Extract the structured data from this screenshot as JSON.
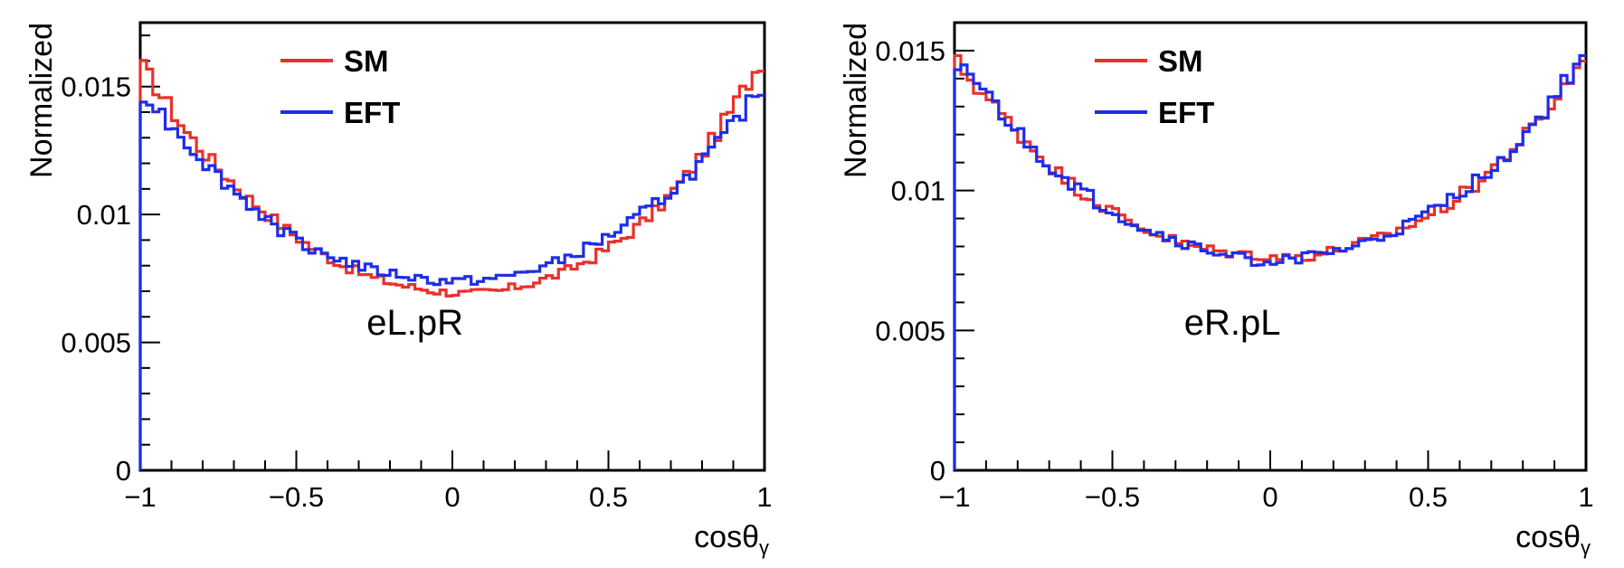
{
  "chart_data": [
    {
      "type": "line",
      "style": "step-histogram",
      "annotation": "eL.pR",
      "xlabel": "cosθγ",
      "xlabel_main": "cosθ",
      "xlabel_sub": "γ",
      "ylabel": "Normalized",
      "xlim": [
        -1,
        1
      ],
      "ylim": [
        0,
        0.0175
      ],
      "xticks": [
        -1,
        -0.5,
        0,
        0.5,
        1
      ],
      "xtick_labels": [
        "−1",
        "−0.5",
        "0",
        "0.5",
        "1"
      ],
      "yticks": [
        0,
        0.005,
        0.01,
        0.015
      ],
      "ytick_labels": [
        "0",
        "0.005",
        "0.01",
        "0.015"
      ],
      "legend": [
        "SM",
        "EFT"
      ],
      "legend_position": "top-center",
      "x_bin_centers": [
        -0.95,
        -0.85,
        -0.75,
        -0.65,
        -0.55,
        -0.45,
        -0.35,
        -0.25,
        -0.15,
        -0.05,
        0.05,
        0.15,
        0.25,
        0.35,
        0.45,
        0.55,
        0.65,
        0.75,
        0.85,
        0.95
      ],
      "series": [
        {
          "name": "SM",
          "color": "#e8312b",
          "values": [
            0.015,
            0.0132,
            0.0118,
            0.0106,
            0.0096,
            0.0087,
            0.008,
            0.0075,
            0.0072,
            0.007,
            0.0069,
            0.007,
            0.0073,
            0.0077,
            0.0083,
            0.0091,
            0.0101,
            0.0115,
            0.0132,
            0.0152
          ]
        },
        {
          "name": "EFT",
          "color": "#1f2de8",
          "values": [
            0.0142,
            0.0128,
            0.0115,
            0.0104,
            0.0094,
            0.0087,
            0.0082,
            0.0078,
            0.0076,
            0.0074,
            0.0074,
            0.0075,
            0.0078,
            0.0082,
            0.0088,
            0.0095,
            0.0104,
            0.0114,
            0.0127,
            0.0143
          ]
        }
      ]
    },
    {
      "type": "line",
      "style": "step-histogram",
      "annotation": "eR.pL",
      "xlabel": "cosθγ",
      "xlabel_main": "cosθ",
      "xlabel_sub": "γ",
      "ylabel": "Normalized",
      "xlim": [
        -1,
        1
      ],
      "ylim": [
        0,
        0.016
      ],
      "xticks": [
        -1,
        -0.5,
        0,
        0.5,
        1
      ],
      "xtick_labels": [
        "−1",
        "−0.5",
        "0",
        "0.5",
        "1"
      ],
      "yticks": [
        0,
        0.005,
        0.01,
        0.015
      ],
      "ytick_labels": [
        "0",
        "0.005",
        "0.01",
        "0.015"
      ],
      "legend": [
        "SM",
        "EFT"
      ],
      "legend_position": "top-center",
      "x_bin_centers": [
        -0.95,
        -0.85,
        -0.75,
        -0.65,
        -0.55,
        -0.45,
        -0.35,
        -0.25,
        -0.15,
        -0.05,
        0.05,
        0.15,
        0.25,
        0.35,
        0.45,
        0.55,
        0.65,
        0.75,
        0.85,
        0.95
      ],
      "series": [
        {
          "name": "SM",
          "color": "#e8312b",
          "values": [
            0.014,
            0.0127,
            0.0115,
            0.0104,
            0.0096,
            0.0089,
            0.0084,
            0.008,
            0.0078,
            0.0077,
            0.0076,
            0.0077,
            0.008,
            0.0083,
            0.0088,
            0.0094,
            0.0102,
            0.0113,
            0.0124,
            0.014
          ]
        },
        {
          "name": "EFT",
          "color": "#1f2de8",
          "values": [
            0.0141,
            0.0127,
            0.0114,
            0.0104,
            0.0096,
            0.0089,
            0.0084,
            0.008,
            0.0077,
            0.0075,
            0.0075,
            0.0077,
            0.0079,
            0.0083,
            0.0088,
            0.0095,
            0.0103,
            0.0113,
            0.0125,
            0.0141
          ]
        }
      ]
    }
  ]
}
